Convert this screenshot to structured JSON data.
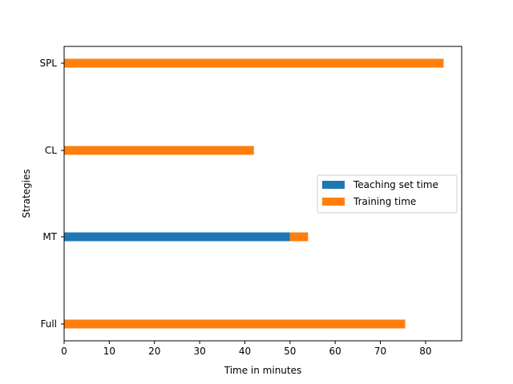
{
  "chart_data": {
    "type": "bar",
    "orientation": "horizontal",
    "stacked": true,
    "categories": [
      "Full",
      "MT",
      "CL",
      "SPL"
    ],
    "series": [
      {
        "name": "Teaching set time",
        "values": [
          0,
          50,
          0,
          0
        ],
        "color": "#1f77b4"
      },
      {
        "name": "Training time",
        "values": [
          75.5,
          4,
          42,
          84
        ],
        "color": "#ff7f0e"
      }
    ],
    "xlabel": "Time in minutes",
    "ylabel": "Strategies",
    "xlim": [
      0,
      88
    ],
    "xticks": [
      0,
      10,
      20,
      30,
      40,
      50,
      60,
      70,
      80
    ],
    "xtick_labels": [
      "0",
      "10",
      "20",
      "30",
      "40",
      "50",
      "60",
      "70",
      "80"
    ],
    "grid": false,
    "legend_position": "center-right"
  }
}
